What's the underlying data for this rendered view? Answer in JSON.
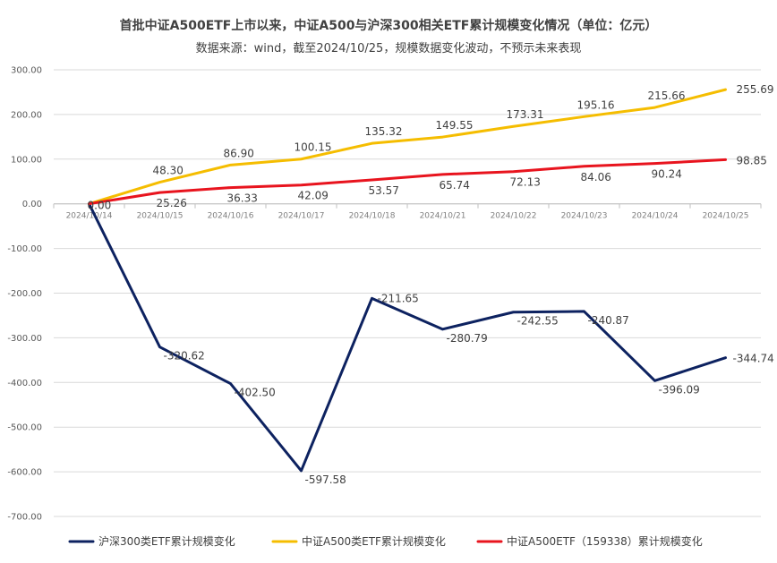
{
  "chart_data": {
    "type": "line",
    "title": "首批中证A500ETF上市以来，中证A500与沪深300相关ETF累计规模变化情况（单位：亿元）",
    "subtitle": "数据来源：wind，截至2024/10/25，规模数据变化波动，不预示未来表现",
    "categories": [
      "2024/10/14",
      "2024/10/15",
      "2024/10/16",
      "2024/10/17",
      "2024/10/18",
      "2024/10/21",
      "2024/10/22",
      "2024/10/23",
      "2024/10/24",
      "2024/10/25"
    ],
    "ylim": [
      -700,
      300
    ],
    "yticks": [
      300,
      200,
      100,
      0,
      -100,
      -200,
      -300,
      -400,
      -500,
      -600,
      -700
    ],
    "ytick_labels": [
      "300.00",
      "200.00",
      "100.00",
      "0.00",
      "-100.00",
      "-200.00",
      "-300.00",
      "-400.00",
      "-500.00",
      "-600.00",
      "-700.00"
    ],
    "grid": true,
    "legend_position": "bottom",
    "series": [
      {
        "name": "沪深300类ETF累计规模变化",
        "color": "#0d2260",
        "values": [
          0,
          -320.62,
          -402.5,
          -597.58,
          -211.65,
          -280.79,
          -242.55,
          -240.87,
          -396.09,
          -344.74
        ],
        "labels": [
          "",
          "-320.62",
          "-402.50",
          "-597.58",
          "-211.65",
          "-280.79",
          "-242.55",
          "-240.87",
          "-396.09",
          "-344.74"
        ]
      },
      {
        "name": "中证A500类ETF累计规模变化",
        "color": "#f5bd00",
        "values": [
          0,
          48.3,
          86.9,
          100.15,
          135.32,
          149.55,
          173.31,
          195.16,
          215.66,
          255.69
        ],
        "labels": [
          "",
          "48.30",
          "86.90",
          "100.15",
          "135.32",
          "149.55",
          "173.31",
          "195.16",
          "215.66",
          "255.69"
        ]
      },
      {
        "name": "中证A500ETF（159338）累计规模变化",
        "color": "#e8141e",
        "values": [
          0,
          25.26,
          36.33,
          42.09,
          53.57,
          65.74,
          72.13,
          84.06,
          90.24,
          98.85
        ],
        "labels": [
          "0.00",
          "25.26",
          "36.33",
          "42.09",
          "53.57",
          "65.74",
          "72.13",
          "84.06",
          "90.24",
          "98.85"
        ]
      }
    ]
  }
}
